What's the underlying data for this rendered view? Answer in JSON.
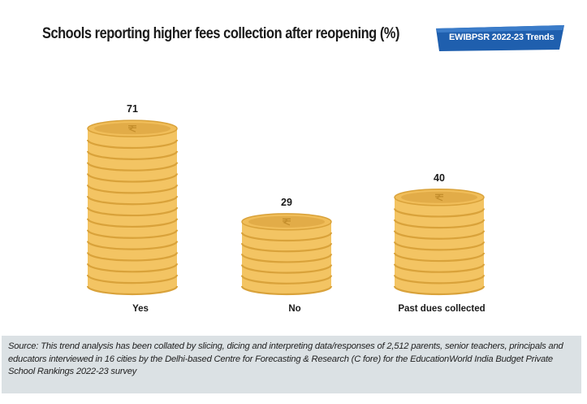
{
  "title": "Schools reporting higher fees collection after reopening (%)",
  "badge": "EWIBPSR 2022-23 Trends",
  "colors": {
    "coin_body": "#f3c463",
    "coin_ridge": "#d9a23a",
    "coin_top": "#f0bd59",
    "coin_face": "#e2ac48",
    "badge": "#1f5fae",
    "footer": "#dbe1e4"
  },
  "icons": {
    "coin_symbol": "rupee-symbol"
  },
  "source": "Source: This trend analysis has been collated by slicing, dicing and interpreting data/responses of 2,512 parents, senior teachers, principals and educators interviewed in 16 cities by the Delhi-based Centre for Forecasting & Research (C fore) for the EducationWorld India Budget Private School Rankings 2022-23 survey",
  "chart_data": {
    "type": "bar",
    "categories": [
      "Yes",
      "No",
      "Past dues collected"
    ],
    "values": [
      71,
      29,
      40
    ],
    "data_labels": [
      "71",
      "29",
      "40"
    ],
    "title": "Schools reporting higher fees collection after reopening (%)",
    "ylim": [
      0,
      80
    ],
    "grid": false
  }
}
